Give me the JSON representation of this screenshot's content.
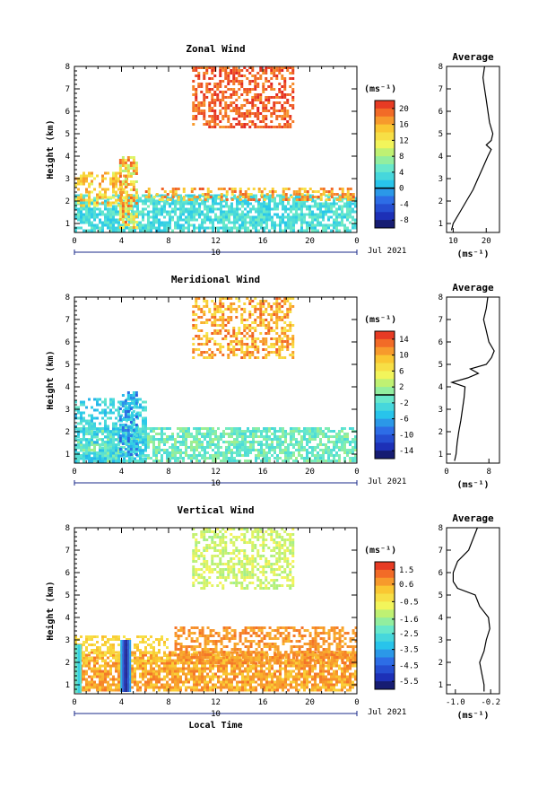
{
  "chart_data": [
    {
      "type": "heatmap",
      "title": "Zonal Wind",
      "ylabel": "Height (km)",
      "xlabel": "",
      "x_ticks": [
        "0",
        "4",
        "8",
        "12",
        "16",
        "20",
        "0"
      ],
      "x_range": [
        0,
        24
      ],
      "y_ticks": [
        "1",
        "2",
        "3",
        "4",
        "5",
        "6",
        "7",
        "8"
      ],
      "y_range": [
        0.6,
        8
      ],
      "date_day": "10",
      "date_label": "Jul 2021",
      "colorbar": {
        "unit": "(ms⁻¹)",
        "ticks": [
          "20",
          "16",
          "12",
          "8",
          "4",
          "0",
          "-4",
          "-8"
        ],
        "range": [
          -10,
          22
        ],
        "zero_line": 0
      },
      "cloud_regions": [
        {
          "x0": 0.0,
          "x1": 24.0,
          "y0": 0.7,
          "y1": 2.3,
          "value_range": [
            1,
            6
          ],
          "density": 0.75
        },
        {
          "x0": 0.0,
          "x1": 4.5,
          "y0": 1.8,
          "y1": 3.3,
          "value_range": [
            10,
            18
          ],
          "density": 0.55
        },
        {
          "x0": 3.8,
          "x1": 5.4,
          "y0": 0.8,
          "y1": 4.0,
          "value_range": [
            8,
            20
          ],
          "density": 0.65
        },
        {
          "x0": 6.0,
          "x1": 24.0,
          "y0": 2.0,
          "y1": 2.6,
          "value_range": [
            12,
            20
          ],
          "density": 0.45
        },
        {
          "x0": 10.0,
          "x1": 18.5,
          "y0": 5.3,
          "y1": 8.0,
          "value_range": [
            17,
            22
          ],
          "density": 0.55
        }
      ],
      "average_profile": {
        "title": "Average",
        "xlabel": "(ms⁻¹)",
        "x_ticks": [
          "10",
          "20"
        ],
        "x_range": [
          8,
          24
        ],
        "heights": [
          0.7,
          1.0,
          1.5,
          2.0,
          2.5,
          3.0,
          3.5,
          4.0,
          4.3,
          4.5,
          4.7,
          5.0,
          5.5,
          6.0,
          6.5,
          7.0,
          7.5,
          8.0
        ],
        "values": [
          9.5,
          10.0,
          12.0,
          14.0,
          16.0,
          17.5,
          19.0,
          20.5,
          21.5,
          20.0,
          21.5,
          22.0,
          21.0,
          20.5,
          20.0,
          19.5,
          19.0,
          19.5
        ]
      }
    },
    {
      "type": "heatmap",
      "title": "Meridional Wind",
      "ylabel": "Height (km)",
      "xlabel": "",
      "x_ticks": [
        "0",
        "4",
        "8",
        "12",
        "16",
        "20",
        "0"
      ],
      "x_range": [
        0,
        24
      ],
      "y_ticks": [
        "1",
        "2",
        "3",
        "4",
        "5",
        "6",
        "7",
        "8"
      ],
      "y_range": [
        0.6,
        8
      ],
      "date_day": "10",
      "date_label": "Jul 2021",
      "colorbar": {
        "unit": "(ms⁻¹)",
        "ticks": [
          "14",
          "10",
          "6",
          "2",
          "-2",
          "-6",
          "-10",
          "-14"
        ],
        "range": [
          -16,
          16
        ],
        "zero_line": 0
      },
      "cloud_regions": [
        {
          "x0": 0.0,
          "x1": 24.0,
          "y0": 0.7,
          "y1": 2.2,
          "value_range": [
            -3,
            2
          ],
          "density": 0.7
        },
        {
          "x0": 0.0,
          "x1": 6.0,
          "y0": 0.7,
          "y1": 3.5,
          "value_range": [
            -6,
            -1
          ],
          "density": 0.55
        },
        {
          "x0": 3.8,
          "x1": 5.2,
          "y0": 1.0,
          "y1": 3.8,
          "value_range": [
            -10,
            -2
          ],
          "density": 0.6
        },
        {
          "x0": 10.0,
          "x1": 18.5,
          "y0": 5.3,
          "y1": 8.0,
          "value_range": [
            6,
            14
          ],
          "density": 0.5
        }
      ],
      "average_profile": {
        "title": "Average",
        "xlabel": "(ms⁻¹)",
        "x_ticks": [
          "0",
          "8"
        ],
        "x_range": [
          0,
          10
        ],
        "heights": [
          0.7,
          1.0,
          1.5,
          2.0,
          2.5,
          3.0,
          3.5,
          4.0,
          4.2,
          4.4,
          4.6,
          4.8,
          5.0,
          5.3,
          5.6,
          6.0,
          6.5,
          7.0,
          7.5,
          8.0
        ],
        "values": [
          1.5,
          1.8,
          2.0,
          2.3,
          2.7,
          3.0,
          3.3,
          3.5,
          1.0,
          4.0,
          6.0,
          4.5,
          7.5,
          8.5,
          9.0,
          8.0,
          7.5,
          7.0,
          7.5,
          7.8
        ]
      }
    },
    {
      "type": "heatmap",
      "title": "Vertical Wind",
      "ylabel": "Height (km)",
      "xlabel": "Local Time",
      "x_ticks": [
        "0",
        "4",
        "8",
        "12",
        "16",
        "20",
        "0"
      ],
      "x_range": [
        0,
        24
      ],
      "y_ticks": [
        "1",
        "2",
        "3",
        "4",
        "5",
        "6",
        "7",
        "8"
      ],
      "y_range": [
        0.6,
        8
      ],
      "date_day": "10",
      "date_label": "Jul 2021",
      "colorbar": {
        "unit": "(ms⁻¹)",
        "ticks": [
          "1.5",
          "0.6",
          "-0.5",
          "-1.6",
          "-2.5",
          "-3.5",
          "-4.5",
          "-5.5"
        ],
        "range": [
          -6,
          2
        ],
        "zero_line": null
      },
      "cloud_regions": [
        {
          "x0": 0.0,
          "x1": 24.0,
          "y0": 0.7,
          "y1": 2.5,
          "value_range": [
            0.0,
            1.2
          ],
          "density": 0.8
        },
        {
          "x0": 8.5,
          "x1": 24.0,
          "y0": 2.0,
          "y1": 3.6,
          "value_range": [
            0.4,
            1.2
          ],
          "density": 0.55
        },
        {
          "x0": 0.0,
          "x1": 8.0,
          "y0": 2.0,
          "y1": 3.2,
          "value_range": [
            -0.4,
            0.4
          ],
          "density": 0.5
        },
        {
          "x0": 10.0,
          "x1": 18.5,
          "y0": 5.3,
          "y1": 8.0,
          "value_range": [
            -1.6,
            -0.6
          ],
          "density": 0.5
        }
      ],
      "vertical_streaks": [
        {
          "x0": 3.9,
          "x1": 4.7,
          "y0": 0.7,
          "y1": 3.0,
          "value_range": [
            -5.8,
            -3.5
          ]
        },
        {
          "x0": 0.0,
          "x1": 0.6,
          "y0": 0.7,
          "y1": 2.8,
          "value_range": [
            -3.0,
            -2.0
          ]
        }
      ],
      "average_profile": {
        "title": "Average",
        "xlabel": "(ms⁻¹)",
        "x_ticks": [
          "-1.0",
          "-0.2"
        ],
        "x_range": [
          -1.2,
          0.0
        ],
        "heights": [
          0.7,
          1.0,
          1.5,
          2.0,
          2.5,
          3.0,
          3.5,
          4.0,
          4.5,
          5.0,
          5.3,
          5.6,
          6.0,
          6.5,
          7.0,
          7.5,
          8.0
        ],
        "values": [
          -0.35,
          -0.35,
          -0.4,
          -0.45,
          -0.35,
          -0.3,
          -0.22,
          -0.25,
          -0.45,
          -0.55,
          -0.95,
          -1.05,
          -1.05,
          -0.95,
          -0.7,
          -0.6,
          -0.5
        ]
      }
    }
  ]
}
